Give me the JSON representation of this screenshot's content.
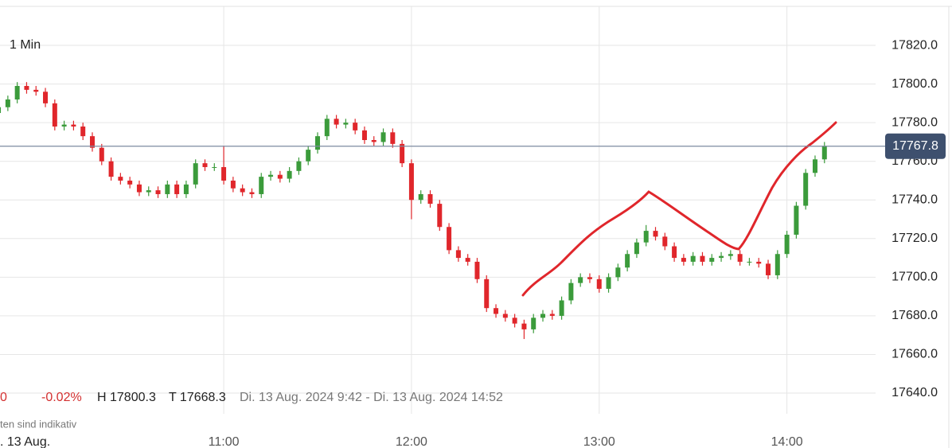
{
  "chart_data": {
    "type": "candlestick",
    "timeframe": "1 Min",
    "x": [
      "9:48",
      "9:51",
      "9:54",
      "9:57",
      "10:00",
      "10:03",
      "10:06",
      "10:09",
      "10:12",
      "10:15",
      "10:18",
      "10:21",
      "10:24",
      "10:27",
      "10:30",
      "10:33",
      "10:36",
      "10:39",
      "10:42",
      "10:45",
      "10:48",
      "10:51",
      "10:54",
      "10:57",
      "11:00",
      "11:03",
      "11:06",
      "11:09",
      "11:12",
      "11:15",
      "11:18",
      "11:21",
      "11:24",
      "11:27",
      "11:30",
      "11:33",
      "11:36",
      "11:39",
      "11:42",
      "11:45",
      "11:48",
      "11:51",
      "11:54",
      "11:57",
      "12:00",
      "12:03",
      "12:06",
      "12:09",
      "12:12",
      "12:15",
      "12:18",
      "12:21",
      "12:24",
      "12:27",
      "12:30",
      "12:33",
      "12:36",
      "12:39",
      "12:42",
      "12:45",
      "12:48",
      "12:51",
      "12:54",
      "12:57",
      "13:00",
      "13:03",
      "13:06",
      "13:09",
      "13:12",
      "13:15",
      "13:18",
      "13:21",
      "13:24",
      "13:27",
      "13:30",
      "13:33",
      "13:36",
      "13:39",
      "13:42",
      "13:45",
      "13:48",
      "13:51",
      "13:54",
      "13:57",
      "14:00",
      "14:03",
      "14:06",
      "14:09",
      "14:12"
    ],
    "open": [
      17785,
      17788,
      17792,
      17799,
      17797,
      17796,
      17790,
      17778,
      17779,
      17778,
      17773,
      17767,
      17760,
      17752,
      17750,
      17748,
      17744,
      17745,
      17743,
      17748,
      17743,
      17748,
      17759,
      17757,
      17757,
      17750,
      17746,
      17744,
      17743,
      17752,
      17753,
      17751,
      17755,
      17760,
      17766,
      17773,
      17782,
      17779,
      17780,
      17776,
      17771,
      17770,
      17775,
      17769,
      17759,
      17740,
      17743,
      17738,
      17726,
      17714,
      17710,
      17708,
      17699,
      17684,
      17681,
      17679,
      17676,
      17673,
      17679,
      17681,
      17680,
      17688,
      17697,
      17700,
      17699,
      17694,
      17700,
      17705,
      17712,
      17718,
      17724,
      17721,
      17716,
      17710,
      17708,
      17711,
      17708,
      17710,
      17711,
      17712,
      17708,
      17708,
      17707,
      17701,
      17712,
      17722,
      17737,
      17754,
      17761
    ],
    "high": [
      17790,
      17794,
      17801,
      17801,
      17799,
      17798,
      17792,
      17781,
      17781,
      17780,
      17775,
      17769,
      17762,
      17754,
      17752,
      17750,
      17747,
      17747,
      17750,
      17750,
      17750,
      17761,
      17761,
      17759,
      17768,
      17752,
      17748,
      17746,
      17754,
      17755,
      17755,
      17757,
      17762,
      17768,
      17775,
      17784,
      17784,
      17782,
      17782,
      17778,
      17773,
      17777,
      17777,
      17771,
      17761,
      17745,
      17745,
      17740,
      17728,
      17716,
      17712,
      17710,
      17701,
      17686,
      17683,
      17681,
      17678,
      17681,
      17683,
      17683,
      17690,
      17699,
      17702,
      17702,
      17701,
      17702,
      17707,
      17714,
      17720,
      17727,
      17726,
      17723,
      17718,
      17712,
      17713,
      17713,
      17712,
      17713,
      17714,
      17714,
      17710,
      17710,
      17709,
      17714,
      17724,
      17739,
      17756,
      17763,
      17770
    ],
    "low": [
      17783,
      17786,
      17790,
      17795,
      17794,
      17788,
      17776,
      17776,
      17776,
      17771,
      17765,
      17758,
      17750,
      17748,
      17746,
      17742,
      17742,
      17741,
      17741,
      17741,
      17741,
      17746,
      17755,
      17755,
      17748,
      17744,
      17742,
      17741,
      17741,
      17750,
      17749,
      17749,
      17753,
      17758,
      17764,
      17771,
      17777,
      17777,
      17774,
      17769,
      17768,
      17768,
      17767,
      17757,
      17730,
      17738,
      17736,
      17724,
      17712,
      17708,
      17706,
      17697,
      17682,
      17679,
      17677,
      17674,
      17668,
      17671,
      17677,
      17678,
      17678,
      17686,
      17695,
      17697,
      17692,
      17692,
      17698,
      17703,
      17710,
      17716,
      17719,
      17714,
      17708,
      17706,
      17706,
      17706,
      17706,
      17708,
      17709,
      17706,
      17706,
      17705,
      17699,
      17699,
      17710,
      17720,
      17735,
      17752,
      17759
    ],
    "close": [
      17788,
      17792,
      17799,
      17797,
      17796,
      17790,
      17778,
      17779,
      17778,
      17773,
      17767,
      17760,
      17752,
      17750,
      17748,
      17744,
      17745,
      17743,
      17748,
      17743,
      17748,
      17759,
      17757,
      17757,
      17750,
      17746,
      17744,
      17743,
      17752,
      17753,
      17751,
      17755,
      17760,
      17766,
      17773,
      17782,
      17779,
      17780,
      17776,
      17771,
      17770,
      17775,
      17769,
      17759,
      17740,
      17743,
      17738,
      17726,
      17714,
      17710,
      17708,
      17699,
      17684,
      17681,
      17679,
      17676,
      17673,
      17679,
      17681,
      17680,
      17688,
      17697,
      17700,
      17699,
      17694,
      17700,
      17705,
      17712,
      17718,
      17724,
      17721,
      17716,
      17710,
      17708,
      17711,
      17708,
      17710,
      17711,
      17712,
      17708,
      17708,
      17707,
      17701,
      17712,
      17722,
      17737,
      17754,
      17761,
      17768
    ],
    "up_color": "#3b9b3b",
    "down_color": "#e0262b",
    "xlim": [
      "9:49",
      "14:52"
    ],
    "xticks": [
      "11:00",
      "12:00",
      "13:00",
      "14:00"
    ],
    "ylim": [
      17629.3,
      17840.2
    ],
    "yticks": [
      {
        "value": 17640,
        "label": "17640.0"
      },
      {
        "value": 17660,
        "label": "17660.0"
      },
      {
        "value": 17680,
        "label": "17680.0"
      },
      {
        "value": 17700,
        "label": "17700.0"
      },
      {
        "value": 17720,
        "label": "17720.0"
      },
      {
        "value": 17740,
        "label": "17740.0"
      },
      {
        "value": 17760,
        "label": "17760.0"
      },
      {
        "value": 17780,
        "label": "17780.0"
      },
      {
        "value": 17800,
        "label": "17800.0"
      },
      {
        "value": 17820,
        "label": "17820.0"
      }
    ],
    "grid": true,
    "current_price": 17767.8,
    "change": "0",
    "change_percent": "-0.02%",
    "high_label": "H 17800.3",
    "low_label": "T 17668.3",
    "range": "Di. 13 Aug. 2024 9:42 - Di. 13 Aug. 2024 14:52",
    "footnote": "ten sind indikativ",
    "date_label": ". 13 Aug."
  }
}
